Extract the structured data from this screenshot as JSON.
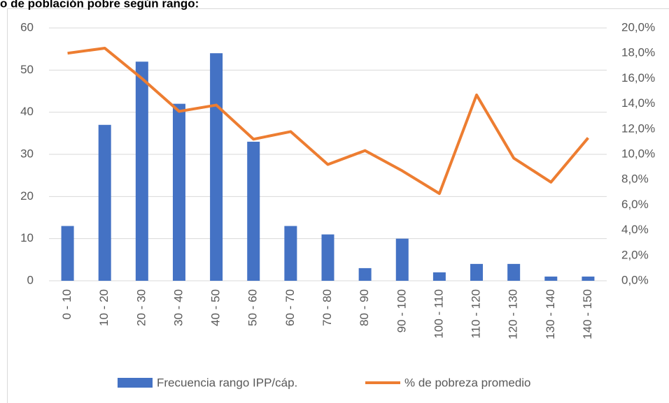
{
  "chart_data": {
    "type": "bar-line",
    "title": "o de población pobre según rango:",
    "categories": [
      "0 - 10",
      "10 - 20",
      "20 - 30",
      "30 - 40",
      "40 - 50",
      "50 - 60",
      "60 - 70",
      "70 - 80",
      "80 - 90",
      "90 - 100",
      "100 - 110",
      "110 - 120",
      "120 - 130",
      "130 - 140",
      "140 - 150"
    ],
    "series": [
      {
        "name": "Frecuencia rango IPP/cáp.",
        "color": "#4472c4",
        "kind": "bar",
        "values": [
          13,
          37,
          52,
          42,
          54,
          33,
          13,
          11,
          3,
          10,
          2,
          4,
          4,
          1,
          1
        ]
      },
      {
        "name": "% de pobreza promedio",
        "color": "#ed7d31",
        "kind": "line",
        "axis": "y2",
        "values": [
          18.0,
          18.4,
          16.0,
          13.4,
          13.9,
          11.2,
          11.8,
          9.2,
          10.3,
          8.7,
          6.9,
          14.7,
          9.7,
          7.8,
          11.3
        ]
      }
    ],
    "ylim": [
      0,
      60
    ],
    "yticks": [
      0,
      10,
      20,
      30,
      40,
      50,
      60
    ],
    "y2lim": [
      0,
      20
    ],
    "y2ticks": [
      {
        "value": 0,
        "label": "0,0%"
      },
      {
        "value": 2,
        "label": "2,0%"
      },
      {
        "value": 4,
        "label": "4,0%"
      },
      {
        "value": 6,
        "label": "6,0%"
      },
      {
        "value": 8,
        "label": "8,0%"
      },
      {
        "value": 10,
        "label": "10,0%"
      },
      {
        "value": 12,
        "label": "12,0%"
      },
      {
        "value": 14,
        "label": "14,0%"
      },
      {
        "value": 16,
        "label": "16,0%"
      },
      {
        "value": 18,
        "label": "18,0%"
      },
      {
        "value": 20,
        "label": "20,0%"
      }
    ],
    "grid": true,
    "legend": "bottom"
  }
}
